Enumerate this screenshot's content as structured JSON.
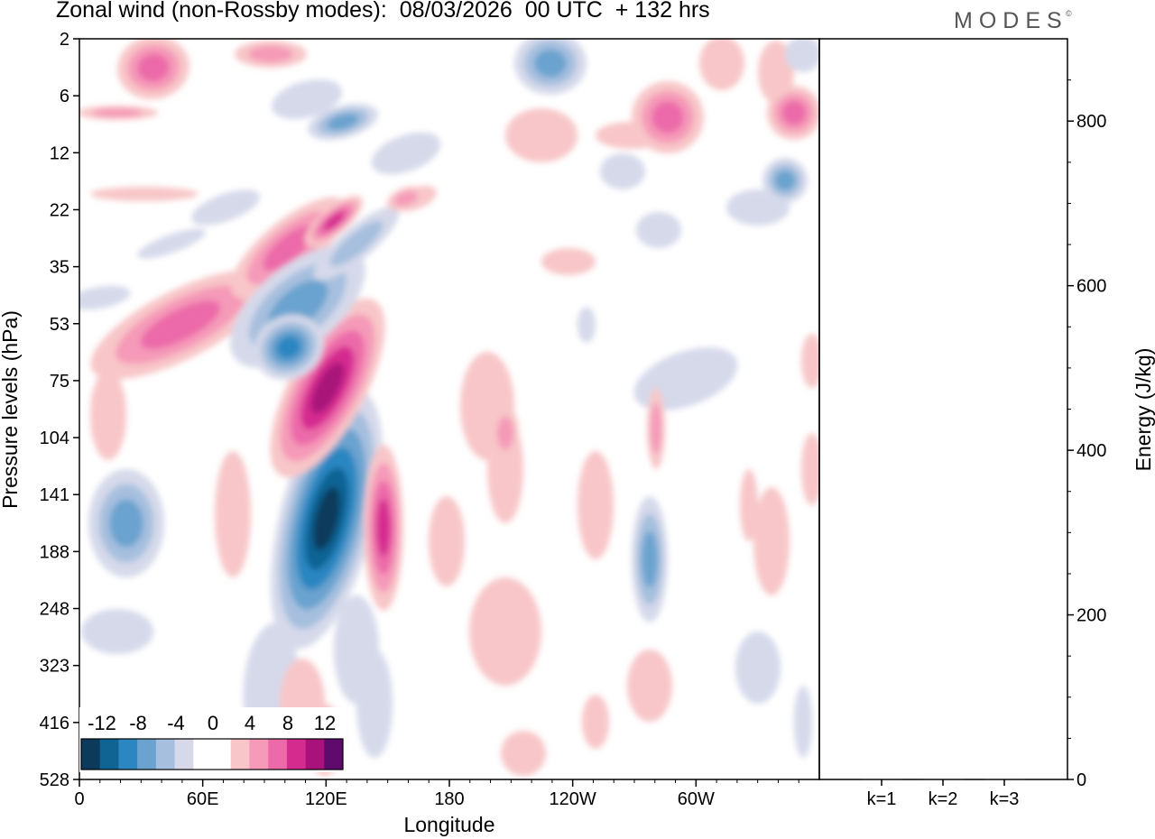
{
  "title": "Zonal wind (non-Rossby modes):  08/03/2026  00 UTC  + 132 hrs",
  "brand": "MODES",
  "brand_mark": "©",
  "chart_data": [
    {
      "type": "heatmap",
      "title": "Zonal wind (non-Rossby modes)",
      "xlabel": "Longitude",
      "ylabel": "Pressure levels (hPa)",
      "x_ticks": [
        "0",
        "60E",
        "120E",
        "180",
        "120W",
        "60W"
      ],
      "x_tick_values": [
        0,
        60,
        120,
        180,
        240,
        300
      ],
      "xlim": [
        0,
        360
      ],
      "y_ticks": [
        "2",
        "6",
        "12",
        "22",
        "35",
        "53",
        "75",
        "104",
        "141",
        "188",
        "248",
        "323",
        "416",
        "528"
      ],
      "colorbar": {
        "labels": [
          "-12",
          "-8",
          "-4",
          "0",
          "4",
          "8",
          "12"
        ],
        "colors": [
          "#0c3a5c",
          "#0f6494",
          "#2b86c1",
          "#6aa3cf",
          "#a6bfde",
          "#d5d9ea",
          "#ffffff",
          "#ffffff",
          "#f8c6c8",
          "#f59ab8",
          "#ec6aa9",
          "#d52b8f",
          "#a8127a",
          "#5f0b6e"
        ]
      },
      "features": [
        {
          "name": "strong negative core",
          "lon": 125,
          "level": "141",
          "value": -13
        },
        {
          "name": "positive core",
          "lon": 119,
          "level": "75",
          "value": 9
        },
        {
          "name": "positive core lower",
          "lon": 147,
          "level": "141",
          "value": 7
        },
        {
          "name": "upper positive band",
          "lon": 110,
          "level": "22",
          "value": 8
        },
        {
          "name": "negative band",
          "lon": 100,
          "level": "53",
          "value": -7
        },
        {
          "name": "negative cell",
          "lon": 277,
          "level": "188",
          "value": -6
        },
        {
          "name": "negative cell west",
          "lon": 25,
          "level": "141",
          "value": -5
        },
        {
          "name": "positive top",
          "lon": 35,
          "level": "2",
          "value": 6
        }
      ]
    },
    {
      "type": "bar",
      "ylabel": "Energy (J/kg)",
      "categories": [
        "k=1",
        "k=2",
        "k=3"
      ],
      "values": [
        1,
        1,
        1
      ],
      "ylim": [
        0,
        900
      ],
      "y_ticks": [
        "0",
        "200",
        "400",
        "600",
        "800"
      ],
      "y_tick_values": [
        0,
        200,
        400,
        600,
        800
      ]
    }
  ]
}
